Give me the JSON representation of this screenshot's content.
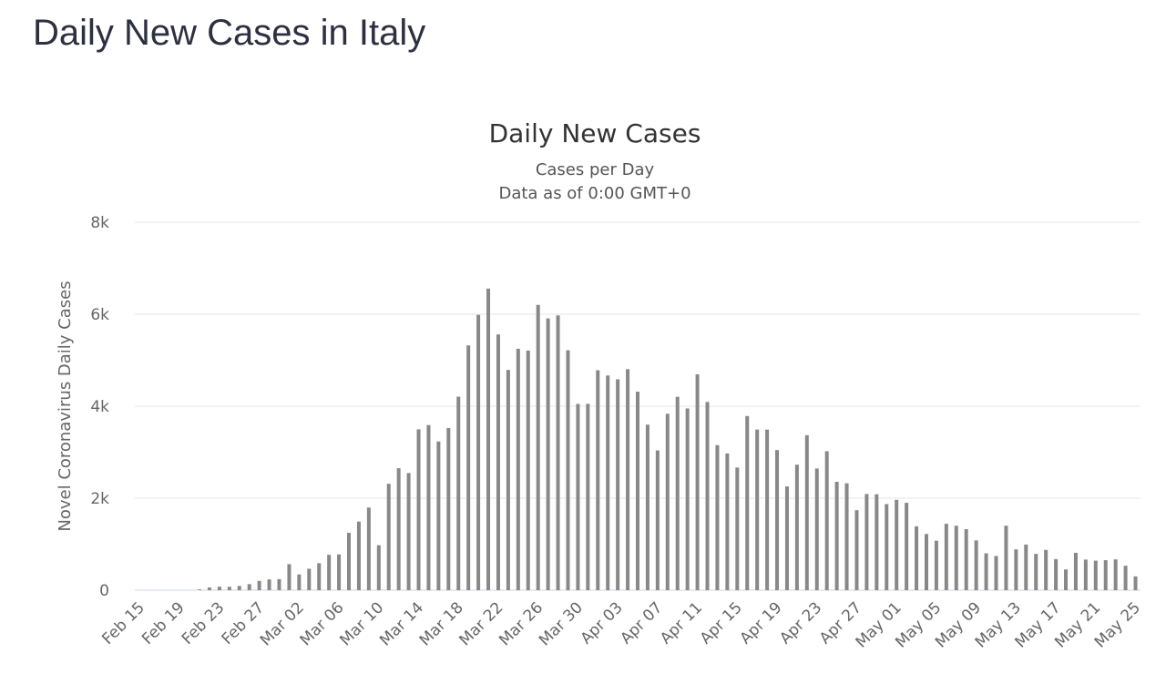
{
  "page_title": "Daily New Cases in Italy",
  "chart_data": {
    "type": "bar",
    "title": "Daily New Cases",
    "subtitle": [
      "Cases per Day",
      "Data as of 0:00 GMT+0"
    ],
    "xlabel": "",
    "ylabel": "Novel Coronavirus Daily Cases",
    "ylim": [
      0,
      8000
    ],
    "yticks": [
      {
        "v": 0,
        "label": "0"
      },
      {
        "v": 2000,
        "label": "2k"
      },
      {
        "v": 4000,
        "label": "4k"
      },
      {
        "v": 6000,
        "label": "6k"
      },
      {
        "v": 8000,
        "label": "8k"
      }
    ],
    "grid": true,
    "bar_color": "#888888",
    "x_tick_every": 4,
    "categories": [
      "Feb 15",
      "Feb 16",
      "Feb 17",
      "Feb 18",
      "Feb 19",
      "Feb 20",
      "Feb 21",
      "Feb 22",
      "Feb 23",
      "Feb 24",
      "Feb 25",
      "Feb 26",
      "Feb 27",
      "Feb 28",
      "Feb 29",
      "Mar 01",
      "Mar 02",
      "Mar 03",
      "Mar 04",
      "Mar 05",
      "Mar 06",
      "Mar 07",
      "Mar 08",
      "Mar 09",
      "Mar 10",
      "Mar 11",
      "Mar 12",
      "Mar 13",
      "Mar 14",
      "Mar 15",
      "Mar 16",
      "Mar 17",
      "Mar 18",
      "Mar 19",
      "Mar 20",
      "Mar 21",
      "Mar 22",
      "Mar 23",
      "Mar 24",
      "Mar 25",
      "Mar 26",
      "Mar 27",
      "Mar 28",
      "Mar 29",
      "Mar 30",
      "Mar 31",
      "Apr 01",
      "Apr 02",
      "Apr 03",
      "Apr 04",
      "Apr 05",
      "Apr 06",
      "Apr 07",
      "Apr 08",
      "Apr 09",
      "Apr 10",
      "Apr 11",
      "Apr 12",
      "Apr 13",
      "Apr 14",
      "Apr 15",
      "Apr 16",
      "Apr 17",
      "Apr 18",
      "Apr 19",
      "Apr 20",
      "Apr 21",
      "Apr 22",
      "Apr 23",
      "Apr 24",
      "Apr 25",
      "Apr 26",
      "Apr 27",
      "Apr 28",
      "Apr 29",
      "Apr 30",
      "May 01",
      "May 02",
      "May 03",
      "May 04",
      "May 05",
      "May 06",
      "May 07",
      "May 08",
      "May 09",
      "May 10",
      "May 11",
      "May 12",
      "May 13",
      "May 14",
      "May 15",
      "May 16",
      "May 17",
      "May 18",
      "May 19",
      "May 20",
      "May 21",
      "May 22",
      "May 23",
      "May 24",
      "May 25"
    ],
    "values": [
      0,
      0,
      0,
      0,
      0,
      0,
      17,
      59,
      76,
      74,
      93,
      131,
      202,
      233,
      240,
      566,
      342,
      466,
      587,
      769,
      778,
      1247,
      1492,
      1797,
      977,
      2313,
      2651,
      2547,
      3497,
      3590,
      3233,
      3526,
      4207,
      5322,
      5986,
      6557,
      5560,
      4789,
      5249,
      5210,
      6203,
      5909,
      5974,
      5217,
      4050,
      4053,
      4782,
      4668,
      4585,
      4805,
      4316,
      3599,
      3039,
      3836,
      4204,
      3951,
      4694,
      4092,
      3153,
      2972,
      2667,
      3786,
      3493,
      3491,
      3047,
      2256,
      2729,
      3370,
      2646,
      3021,
      2357,
      2324,
      1739,
      2091,
      2086,
      1872,
      1965,
      1900,
      1389,
      1221,
      1075,
      1444,
      1401,
      1327,
      1083,
      802,
      744,
      1402,
      888,
      992,
      789,
      875,
      675,
      451,
      813,
      665,
      642,
      652,
      669,
      531,
      300
    ]
  }
}
